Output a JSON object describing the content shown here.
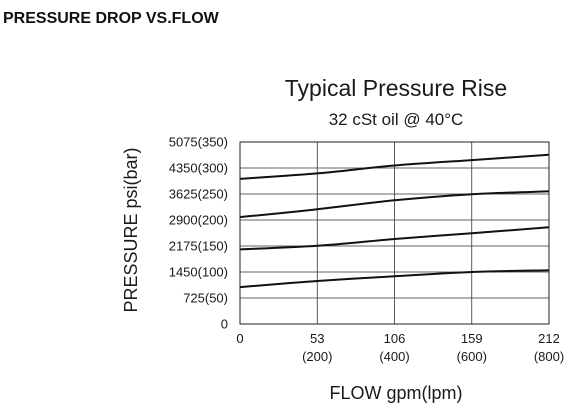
{
  "heading": "PRESSURE DROP VS.FLOW",
  "chart_data": {
    "type": "line",
    "title": "Typical Pressure Rise",
    "subtitle": "32 cSt oil @ 40°C",
    "xlabel": "FLOW  gpm(lpm)",
    "ylabel": "PRESSURE  psi(bar)",
    "xlim": [
      0,
      212
    ],
    "ylim": [
      0,
      5075
    ],
    "grid": true,
    "x_ticks": [
      {
        "value": 0,
        "label": "0",
        "sublabel": ""
      },
      {
        "value": 53,
        "label": "53",
        "sublabel": "(200)"
      },
      {
        "value": 106,
        "label": "106",
        "sublabel": "(400)"
      },
      {
        "value": 159,
        "label": "159",
        "sublabel": "(600)"
      },
      {
        "value": 212,
        "label": "212",
        "sublabel": "(800)"
      }
    ],
    "y_ticks": [
      {
        "value": 0,
        "label": "0"
      },
      {
        "value": 725,
        "label": "725(50)"
      },
      {
        "value": 1450,
        "label": "1450(100)"
      },
      {
        "value": 2175,
        "label": "2175(150)"
      },
      {
        "value": 2900,
        "label": "2900(200)"
      },
      {
        "value": 3625,
        "label": "3625(250)"
      },
      {
        "value": 4350,
        "label": "4350(300)"
      },
      {
        "value": 5075,
        "label": "5075(350)"
      }
    ],
    "x": [
      0,
      53,
      106,
      159,
      212
    ],
    "series": [
      {
        "values": [
          1030,
          1200,
          1330,
          1450,
          1500
        ]
      },
      {
        "values": [
          2080,
          2180,
          2370,
          2530,
          2700
        ]
      },
      {
        "values": [
          2980,
          3200,
          3450,
          3620,
          3700
        ]
      },
      {
        "values": [
          4050,
          4200,
          4420,
          4570,
          4720
        ]
      }
    ]
  }
}
